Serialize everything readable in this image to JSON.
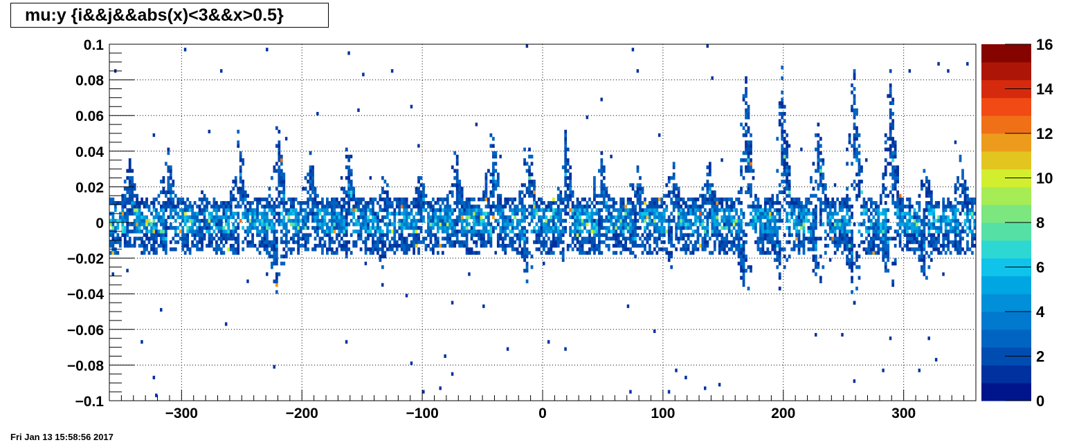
{
  "title": "mu:y {i&&j&&abs(x)<3&&x>0.5}",
  "date_stamp": "Fri Jan 13 15:58:56 2017",
  "palette": [
    "#00148c",
    "#00319f",
    "#004db2",
    "#0064c2",
    "#0079cf",
    "#008fd8",
    "#00a6e2",
    "#10c3ea",
    "#2ed8d2",
    "#55e0a6",
    "#7ce67f",
    "#a6ec55",
    "#d2ef2f",
    "#e3c520",
    "#ec9b1c",
    "#f07018",
    "#f14a14",
    "#d52a0e",
    "#ad1607",
    "#860400"
  ],
  "chart_data": {
    "type": "heatmap",
    "title": "mu:y {i&&j&&abs(x)<3&&x>0.5}",
    "xlim": [
      -360,
      360
    ],
    "ylim": [
      -0.1,
      0.1
    ],
    "zlim": [
      0,
      16
    ],
    "x_ticks": [
      -300,
      -200,
      -100,
      0,
      100,
      200,
      300
    ],
    "x_tick_labels": [
      "−300",
      "−200",
      "−100",
      "0",
      "100",
      "200",
      "300"
    ],
    "y_ticks": [
      -0.1,
      -0.08,
      -0.06,
      -0.04,
      -0.02,
      0,
      0.02,
      0.04,
      0.06,
      0.08,
      0.1
    ],
    "y_tick_labels": [
      "−0.1",
      "−0.08",
      "−0.06",
      "−0.04",
      "−0.02",
      "0",
      "0.02",
      "0.04",
      "0.06",
      "0.08",
      "0.1"
    ],
    "z_ticks": [
      0,
      2,
      4,
      6,
      8,
      10,
      12,
      14,
      16
    ],
    "z_tick_labels": [
      "0",
      "2",
      "4",
      "6",
      "8",
      "10",
      "12",
      "14",
      "16"
    ],
    "grid": true,
    "bins": {
      "x": 360,
      "y": 100
    },
    "band_center": 0,
    "pattern_period_deg": 30,
    "spikes": [
      {
        "x": -343,
        "top": 0.038,
        "bottom": -0.012
      },
      {
        "x": -312,
        "top": 0.05,
        "bottom": -0.02
      },
      {
        "x": -283,
        "top": 0.018,
        "bottom": -0.015
      },
      {
        "x": -252,
        "top": 0.056,
        "bottom": -0.02
      },
      {
        "x": -220,
        "top": 0.063,
        "bottom": -0.043
      },
      {
        "x": -193,
        "top": 0.043,
        "bottom": -0.015
      },
      {
        "x": -162,
        "top": 0.044,
        "bottom": -0.018
      },
      {
        "x": -132,
        "top": 0.03,
        "bottom": -0.025
      },
      {
        "x": -102,
        "top": 0.03,
        "bottom": -0.023
      },
      {
        "x": -72,
        "top": 0.05,
        "bottom": -0.012
      },
      {
        "x": -42,
        "top": 0.062,
        "bottom": -0.013
      },
      {
        "x": -12,
        "top": 0.06,
        "bottom": -0.035
      },
      {
        "x": 19,
        "top": 0.058,
        "bottom": -0.023
      },
      {
        "x": 48,
        "top": 0.048,
        "bottom": -0.02
      },
      {
        "x": 78,
        "top": 0.04,
        "bottom": -0.02
      },
      {
        "x": 108,
        "top": 0.04,
        "bottom": -0.025
      },
      {
        "x": 138,
        "top": 0.04,
        "bottom": -0.018
      },
      {
        "x": 169,
        "top": 0.1,
        "bottom": -0.05
      },
      {
        "x": 199,
        "top": 0.1,
        "bottom": -0.045
      },
      {
        "x": 229,
        "top": 0.07,
        "bottom": -0.04
      },
      {
        "x": 259,
        "top": 0.1,
        "bottom": -0.048
      },
      {
        "x": 289,
        "top": 0.1,
        "bottom": -0.043
      },
      {
        "x": 318,
        "top": 0.035,
        "bottom": -0.035
      },
      {
        "x": 348,
        "top": 0.04,
        "bottom": -0.02
      }
    ]
  }
}
